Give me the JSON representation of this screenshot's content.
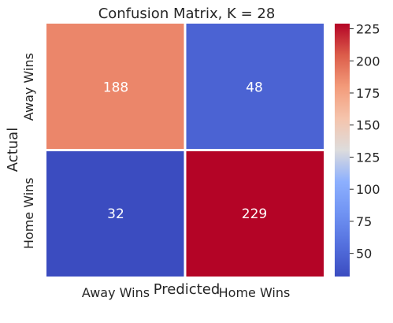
{
  "chart_data": {
    "type": "heatmap",
    "title": "Confusion Matrix, K = 28",
    "xlabel": "Predicted",
    "ylabel": "Actual",
    "x_categories": [
      "Away Wins",
      "Home Wins"
    ],
    "y_categories": [
      "Away Wins",
      "Home Wins"
    ],
    "values": [
      [
        188,
        48
      ],
      [
        32,
        229
      ]
    ],
    "colormap": "coolwarm",
    "colorbar": {
      "min": 32,
      "max": 229,
      "ticks": [
        50,
        75,
        100,
        125,
        150,
        175,
        200,
        225
      ],
      "tick_labels": [
        "50",
        "75",
        "100",
        "125",
        "150",
        "175",
        "200",
        "225"
      ]
    },
    "annotation_color": "#ffffff",
    "grid_line_color": "#ffffff"
  }
}
